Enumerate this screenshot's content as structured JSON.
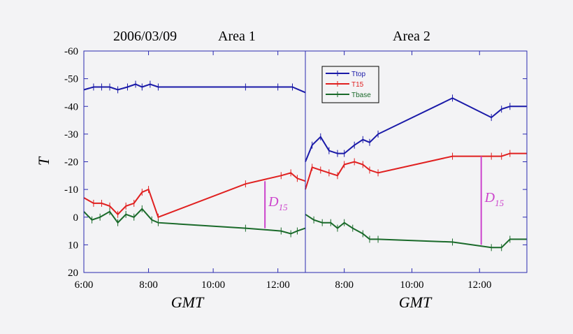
{
  "chart_data": {
    "type": "line",
    "titles": {
      "left_date": "2006/03/09",
      "left_area": "Area 1",
      "right_area": "Area 2"
    },
    "ylabel": "T",
    "xlabel_left": "GMT",
    "xlabel_right": "GMT",
    "y_inverted": true,
    "ylim": [
      -60,
      20
    ],
    "y_ticks": [
      "-60",
      "-50",
      "-40",
      "-30",
      "-20",
      "-10",
      "0",
      "10",
      "20"
    ],
    "y_tick_values": [
      -60,
      -50,
      -40,
      -30,
      -20,
      -10,
      0,
      10,
      20
    ],
    "left_xlim": [
      6.0,
      12.85
    ],
    "right_xlim": [
      6.85,
      13.4
    ],
    "left_x_ticks": [
      "6:00",
      "8:00",
      "10:00",
      "12:00"
    ],
    "left_x_tick_values": [
      6,
      8,
      10,
      12
    ],
    "right_x_ticks": [
      "8:00",
      "10:00",
      "12:00"
    ],
    "right_x_tick_values": [
      8,
      10,
      12
    ],
    "legend": {
      "position": "top-left of Area 2",
      "entries": [
        "Ttop",
        "T15",
        "Tbase"
      ]
    },
    "colors": {
      "Ttop": "#1a1aa8",
      "T15": "#e02020",
      "Tbase": "#1a6a2a",
      "annotation": "#cc44cc"
    },
    "area1": [
      {
        "name": "Ttop",
        "x": [
          6.0,
          6.3,
          6.55,
          6.8,
          7.05,
          7.35,
          7.6,
          7.8,
          8.05,
          8.3,
          11.0,
          12.0,
          12.45,
          12.85
        ],
        "y": [
          -46,
          -47,
          -47,
          -47,
          -46,
          -47,
          -48,
          -47,
          -48,
          -47,
          -47,
          -47,
          -47,
          -45
        ]
      },
      {
        "name": "T15",
        "x": [
          6.0,
          6.3,
          6.55,
          6.8,
          7.05,
          7.3,
          7.55,
          7.8,
          8.0,
          8.3,
          11.0,
          12.1,
          12.4,
          12.6,
          12.85
        ],
        "y": [
          -7,
          -5,
          -5,
          -4,
          -1,
          -4,
          -5,
          -9,
          -10,
          0,
          -12,
          -15,
          -16,
          -14,
          -13
        ]
      },
      {
        "name": "Tbase",
        "x": [
          6.0,
          6.25,
          6.5,
          6.8,
          7.05,
          7.3,
          7.55,
          7.8,
          8.1,
          8.3,
          11.0,
          12.1,
          12.4,
          12.6,
          12.85
        ],
        "y": [
          -2,
          1,
          0,
          -2,
          2,
          -1,
          0,
          -3,
          1,
          2,
          4,
          5,
          6,
          5,
          4
        ]
      }
    ],
    "area2": [
      {
        "name": "Ttop",
        "x": [
          6.85,
          7.05,
          7.3,
          7.55,
          7.8,
          8.0,
          8.3,
          8.55,
          8.75,
          9.0,
          11.2,
          12.35,
          12.65,
          12.9,
          13.4
        ],
        "y": [
          -20,
          -26,
          -29,
          -24,
          -23,
          -23,
          -26,
          -28,
          -27,
          -30,
          -43,
          -36,
          -39,
          -40,
          -40
        ]
      },
      {
        "name": "T15",
        "x": [
          6.85,
          7.05,
          7.3,
          7.55,
          7.8,
          8.0,
          8.3,
          8.55,
          8.75,
          9.0,
          11.2,
          12.35,
          12.65,
          12.9,
          13.4
        ],
        "y": [
          -10,
          -18,
          -17,
          -16,
          -15,
          -19,
          -20,
          -19,
          -17,
          -16,
          -22,
          -22,
          -22,
          -23,
          -23
        ]
      },
      {
        "name": "Tbase",
        "x": [
          6.85,
          7.1,
          7.35,
          7.6,
          7.8,
          8.0,
          8.25,
          8.55,
          8.75,
          9.0,
          11.2,
          12.35,
          12.65,
          12.9,
          13.4
        ],
        "y": [
          -1,
          1,
          2,
          2,
          4,
          2,
          4,
          6,
          8,
          8,
          9,
          11,
          11,
          8,
          8
        ]
      }
    ],
    "annotations": [
      {
        "panel": "area1",
        "label_main": "D",
        "label_sub": "15",
        "x": 11.6,
        "y_from": -13,
        "y_to": 4
      },
      {
        "panel": "area2",
        "label_main": "D",
        "label_sub": "15",
        "x": 12.05,
        "y_from": -22,
        "y_to": 10
      }
    ]
  }
}
